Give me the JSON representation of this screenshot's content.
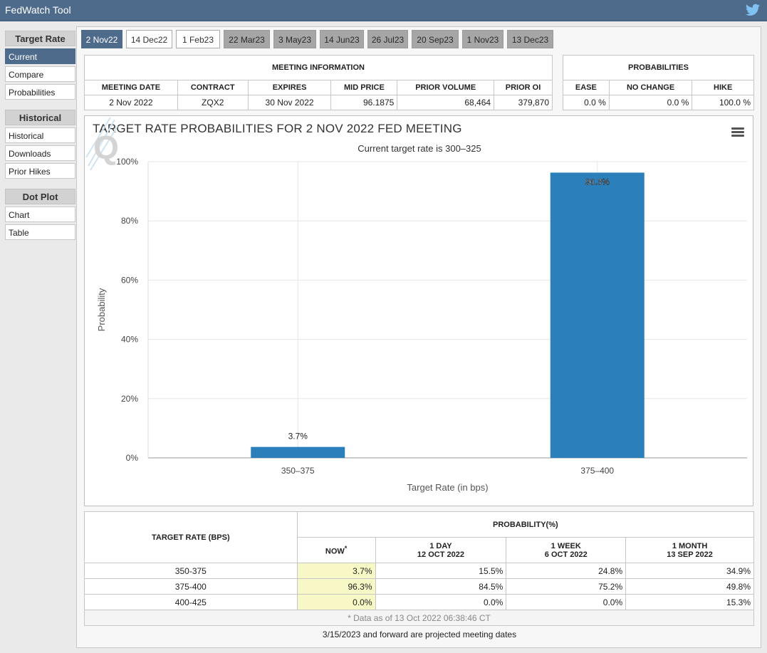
{
  "app": {
    "title": "FedWatch Tool",
    "share_icon": "twitter-icon"
  },
  "sidebar": {
    "sections": [
      {
        "label": "Target Rate",
        "items": [
          {
            "label": "Current",
            "active": true
          },
          {
            "label": "Compare"
          },
          {
            "label": "Probabilities"
          }
        ]
      },
      {
        "label": "Historical",
        "items": [
          {
            "label": "Historical"
          },
          {
            "label": "Downloads"
          },
          {
            "label": "Prior Hikes"
          }
        ]
      },
      {
        "label": "Dot Plot",
        "items": [
          {
            "label": "Chart"
          },
          {
            "label": "Table"
          }
        ]
      }
    ]
  },
  "tabs": [
    {
      "label": "2 Nov22",
      "state": "selected"
    },
    {
      "label": "14 Dec22",
      "state": "available"
    },
    {
      "label": "1 Feb23",
      "state": "available"
    },
    {
      "label": "22 Mar23",
      "state": "projected"
    },
    {
      "label": "3 May23",
      "state": "projected"
    },
    {
      "label": "14 Jun23",
      "state": "projected"
    },
    {
      "label": "26 Jul23",
      "state": "projected"
    },
    {
      "label": "20 Sep23",
      "state": "projected"
    },
    {
      "label": "1 Nov23",
      "state": "projected"
    },
    {
      "label": "13 Dec23",
      "state": "projected"
    }
  ],
  "meeting_info": {
    "heading": "MEETING INFORMATION",
    "columns": [
      "MEETING DATE",
      "CONTRACT",
      "EXPIRES",
      "MID PRICE",
      "PRIOR VOLUME",
      "PRIOR OI"
    ],
    "row": [
      "2 Nov 2022",
      "ZQX2",
      "30 Nov 2022",
      "96.1875",
      "68,464",
      "379,870"
    ]
  },
  "probabilities": {
    "heading": "PROBABILITIES",
    "columns": [
      "EASE",
      "NO CHANGE",
      "HIKE"
    ],
    "row": [
      "0.0 %",
      "0.0 %",
      "100.0 %"
    ]
  },
  "chart_data": {
    "type": "bar",
    "title": "TARGET RATE PROBABILITIES FOR 2 NOV 2022 FED MEETING",
    "subtitle": "Current target rate is 300–325",
    "xlabel": "Target Rate (in bps)",
    "ylabel": "Probability",
    "categories": [
      "350–375",
      "375–400"
    ],
    "values": [
      3.7,
      96.3
    ],
    "data_labels": [
      "3.7%",
      "96.3%"
    ],
    "ylim": [
      0,
      100
    ],
    "yticks": [
      0,
      20,
      40,
      60,
      80,
      100
    ],
    "ytick_labels": [
      "0%",
      "20%",
      "40%",
      "60%",
      "80%",
      "100%"
    ],
    "grid": true,
    "bar_color": "#2b7fbb",
    "logo_letter": "Q"
  },
  "prob_table": {
    "target_header": "TARGET RATE (BPS)",
    "prob_header": "PROBABILITY(%)",
    "now_header": "NOW",
    "now_marker": "*",
    "periods": [
      {
        "line1": "1 DAY",
        "line2": "12 OCT 2022"
      },
      {
        "line1": "1 WEEK",
        "line2": "6 OCT 2022"
      },
      {
        "line1": "1 MONTH",
        "line2": "13 SEP 2022"
      }
    ],
    "rows": [
      {
        "rate": "350-375",
        "now": "3.7%",
        "d1": "15.5%",
        "w1": "24.8%",
        "m1": "34.9%"
      },
      {
        "rate": "375-400",
        "now": "96.3%",
        "d1": "84.5%",
        "w1": "75.2%",
        "m1": "49.8%"
      },
      {
        "rate": "400-425",
        "now": "0.0%",
        "d1": "0.0%",
        "w1": "0.0%",
        "m1": "15.3%"
      }
    ],
    "footnote": "* Data as of 13 Oct 2022 06:38:46 CT"
  },
  "bottom_note": "3/15/2023 and forward are projected meeting dates"
}
